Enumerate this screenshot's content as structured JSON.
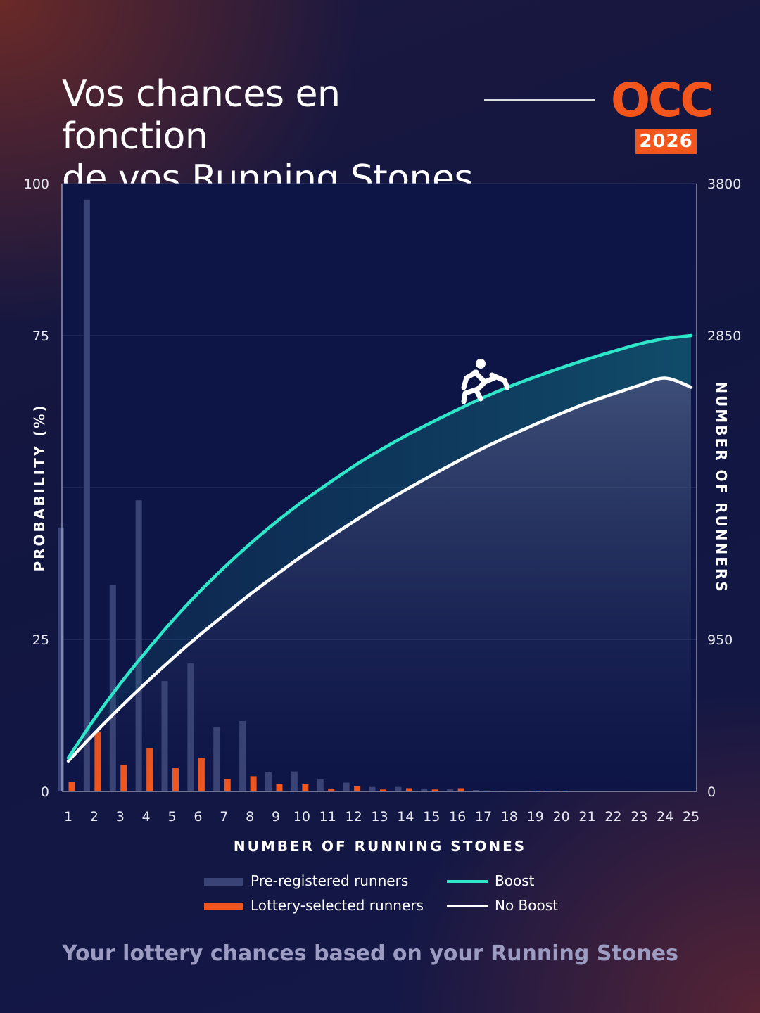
{
  "header": {
    "title_line1": "Vos chances en fonction",
    "title_line2": "de vos Running Stones",
    "logo_text": "OCC",
    "logo_year": "2026",
    "accent_color": "#f2561d"
  },
  "chart_data": {
    "type": "bar+line",
    "xlabel": "NUMBER OF RUNNING STONES",
    "ylabel_left": "PROBABILITY (%)",
    "ylabel_right": "NUMBER OF RUNNERS",
    "ylim_left": [
      0,
      100
    ],
    "ylim_right": [
      0,
      3800
    ],
    "yticks_left": [
      "0",
      "25",
      "75",
      "100"
    ],
    "yticks_left_values": [
      0,
      25,
      75,
      100
    ],
    "yticks_right": [
      "0",
      "950",
      "2850",
      "3800"
    ],
    "yticks_right_values": [
      0,
      950,
      2850,
      3800
    ],
    "grid_values_left": [
      25,
      50,
      75,
      100
    ],
    "categories": [
      "1",
      "2",
      "3",
      "4",
      "5",
      "6",
      "7",
      "8",
      "9",
      "10",
      "11",
      "12",
      "13",
      "14",
      "15",
      "16",
      "17",
      "18",
      "19",
      "20",
      "21",
      "22",
      "23",
      "24",
      "25"
    ],
    "series": [
      {
        "name": "Pre-registered runners",
        "kind": "bar",
        "axis": "right",
        "color": "#3a4375",
        "values": [
          1650,
          3700,
          1290,
          1820,
          690,
          800,
          400,
          440,
          120,
          125,
          75,
          55,
          28,
          28,
          18,
          14,
          9,
          4,
          4,
          3,
          0,
          0,
          0,
          0,
          0
        ]
      },
      {
        "name": "Lottery-selected runners",
        "kind": "bar",
        "axis": "right",
        "color": "#f2561d",
        "values": [
          60,
          375,
          165,
          270,
          145,
          210,
          75,
          95,
          45,
          45,
          18,
          35,
          12,
          20,
          12,
          20,
          5,
          0,
          4,
          4,
          0,
          0,
          0,
          0,
          0
        ]
      },
      {
        "name": "Boost",
        "kind": "line",
        "axis": "left",
        "color": "#2ee6c8",
        "values": [
          5.5,
          11.9,
          17.7,
          23.0,
          28.0,
          32.6,
          36.8,
          40.7,
          44.3,
          47.6,
          50.6,
          53.5,
          56.1,
          58.5,
          60.7,
          62.8,
          64.8,
          66.6,
          68.2,
          69.7,
          71.1,
          72.4,
          73.6,
          74.5,
          75.0
        ]
      },
      {
        "name": "No Boost",
        "kind": "line",
        "axis": "left",
        "color": "#ffffff",
        "values": [
          5.0,
          9.5,
          13.8,
          17.9,
          21.8,
          25.5,
          29.0,
          32.4,
          35.6,
          38.7,
          41.6,
          44.4,
          47.1,
          49.6,
          52.0,
          54.3,
          56.5,
          58.5,
          60.4,
          62.2,
          63.9,
          65.4,
          66.8,
          68.0,
          66.5
        ]
      }
    ],
    "legend": [
      {
        "label": "Pre-registered runners",
        "color": "#3a4375",
        "kind": "bar"
      },
      {
        "label": "Lottery-selected runners",
        "color": "#f2561d",
        "kind": "bar"
      },
      {
        "label": "Boost",
        "color": "#2ee6c8",
        "kind": "line"
      },
      {
        "label": "No Boost",
        "color": "#ffffff",
        "kind": "line"
      }
    ],
    "legend_placement": "bottom-center",
    "grid": true,
    "annotation_icon": "runner-icon"
  },
  "footer": {
    "subtitle": "Your lottery chances based on your Running Stones"
  }
}
